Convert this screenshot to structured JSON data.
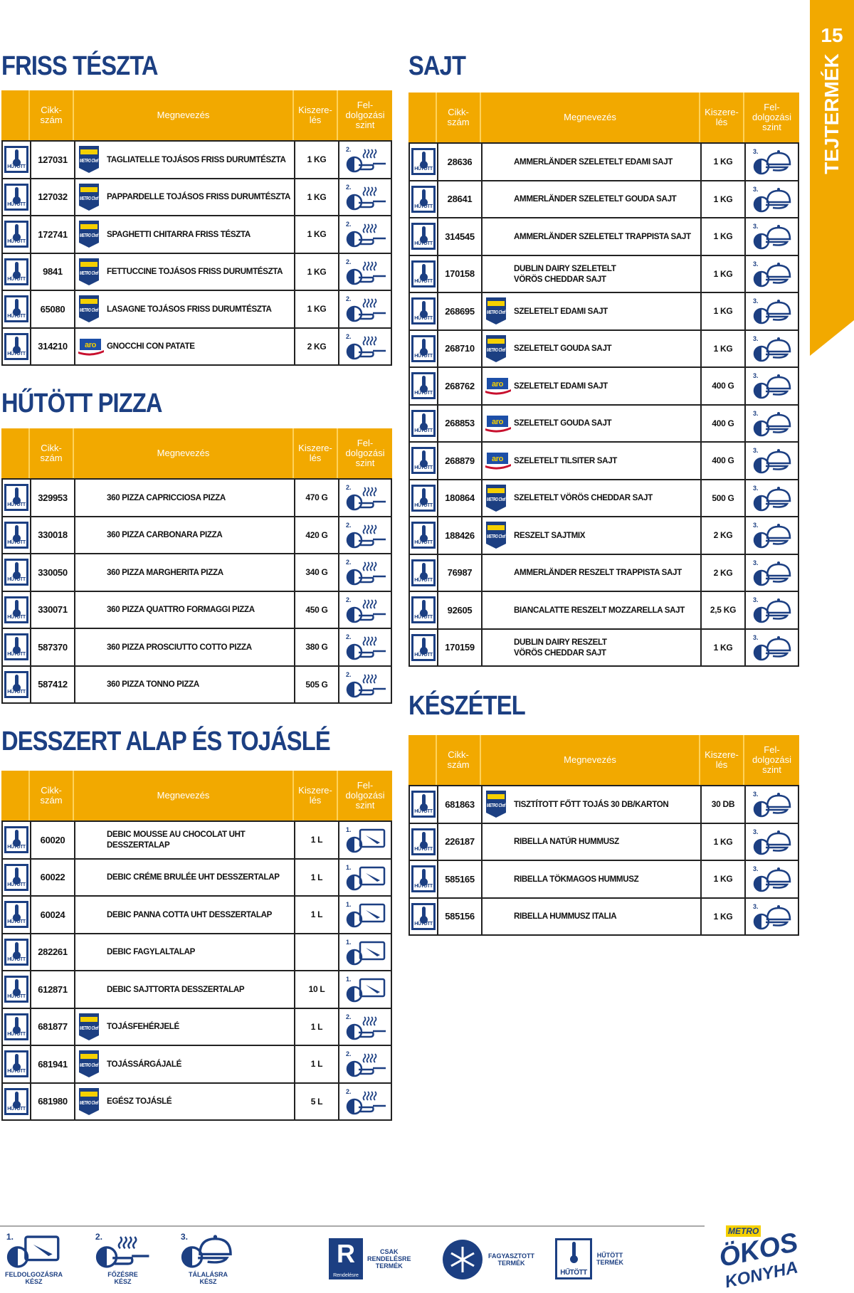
{
  "page_number": "15",
  "side_tab": "TEJTERMÉK",
  "headers": {
    "code": "Cikk-\nszám",
    "name": "Megnevezés",
    "size": "Kiszere-\nlés",
    "level": "Fel-\ndolgozási\nszint"
  },
  "icons": {
    "chilled_label": "HŰTÖTT",
    "level_1": "1.",
    "level_2": "2.",
    "level_3": "3."
  },
  "brands": {
    "metro_chef": "METRO Chef",
    "aro": "aro"
  },
  "colors": {
    "accent": "#f2a900",
    "brand_blue": "#1c3f82",
    "aro_red": "#c8102e"
  },
  "sections": [
    {
      "id": "friss",
      "title": "FRISS TÉSZTA",
      "rows": [
        {
          "code": "127031",
          "brand": "metro_chef",
          "name": "TAGLIATELLE TOJÁSOS FRISS DURUMTÉSZTA",
          "size": "1 KG",
          "level": 2
        },
        {
          "code": "127032",
          "brand": "metro_chef",
          "name": "PAPPARDELLE TOJÁSOS FRISS DURUMTÉSZTA",
          "size": "1 KG",
          "level": 2
        },
        {
          "code": "172741",
          "brand": "metro_chef",
          "name": "SPAGHETTI CHITARRA FRISS TÉSZTA",
          "size": "1 KG",
          "level": 2
        },
        {
          "code": "9841",
          "brand": "metro_chef",
          "name": "FETTUCCINE TOJÁSOS FRISS DURUMTÉSZTA",
          "size": "1 KG",
          "level": 2
        },
        {
          "code": "65080",
          "brand": "metro_chef",
          "name": "LASAGNE TOJÁSOS FRISS DURUMTÉSZTA",
          "size": "1 KG",
          "level": 2
        },
        {
          "code": "314210",
          "brand": "aro",
          "name": "GNOCCHI CON PATATE",
          "size": "2 KG",
          "level": 2
        }
      ]
    },
    {
      "id": "pizza",
      "title": "HŰTÖTT PIZZA",
      "rows": [
        {
          "code": "329953",
          "brand": "",
          "name": "360 PIZZA CAPRICCIOSA PIZZA",
          "size": "470 G",
          "level": 2
        },
        {
          "code": "330018",
          "brand": "",
          "name": "360 PIZZA CARBONARA PIZZA",
          "size": "420 G",
          "level": 2
        },
        {
          "code": "330050",
          "brand": "",
          "name": "360 PIZZA MARGHERITA PIZZA",
          "size": "340 G",
          "level": 2
        },
        {
          "code": "330071",
          "brand": "",
          "name": "360 PIZZA QUATTRO FORMAGGI PIZZA",
          "size": "450 G",
          "level": 2
        },
        {
          "code": "587370",
          "brand": "",
          "name": "360 PIZZA PROSCIUTTO COTTO PIZZA",
          "size": "380 G",
          "level": 2
        },
        {
          "code": "587412",
          "brand": "",
          "name": "360 PIZZA TONNO PIZZA",
          "size": "505 G",
          "level": 2
        }
      ]
    },
    {
      "id": "desszert",
      "title": "DESSZERT ALAP ÉS TOJÁSLÉ",
      "rows": [
        {
          "code": "60020",
          "brand": "",
          "name": "DEBIC MOUSSE AU CHOCOLAT UHT\nDESSZERTALAP",
          "size": "1 L",
          "level": 1
        },
        {
          "code": "60022",
          "brand": "",
          "name": "DEBIC CRÉME BRULÉE UHT DESSZERTALAP",
          "size": "1 L",
          "level": 1
        },
        {
          "code": "60024",
          "brand": "",
          "name": "DEBIC PANNA COTTA UHT DESSZERTALAP",
          "size": "1 L",
          "level": 1
        },
        {
          "code": "282261",
          "brand": "",
          "name": "DEBIC FAGYLALTALAP",
          "size": "",
          "level": 1
        },
        {
          "code": "612871",
          "brand": "",
          "name": "DEBIC SAJTTORTA DESSZERTALAP",
          "size": "10 L",
          "level": 1
        },
        {
          "code": "681877",
          "brand": "metro_chef",
          "name": "TOJÁSFEHÉRJELÉ",
          "size": "1 L",
          "level": 2
        },
        {
          "code": "681941",
          "brand": "metro_chef",
          "name": "TOJÁSSÁRGÁJALÉ",
          "size": "1 L",
          "level": 2
        },
        {
          "code": "681980",
          "brand": "metro_chef",
          "name": "EGÉSZ TOJÁSLÉ",
          "size": "5 L",
          "level": 2
        }
      ]
    },
    {
      "id": "sajt",
      "title": "SAJT",
      "rows": [
        {
          "code": "28636",
          "brand": "",
          "name": "AMMERLÄNDER SZELETELT EDAMI SAJT",
          "size": "1 KG",
          "level": 3
        },
        {
          "code": "28641",
          "brand": "",
          "name": "AMMERLÄNDER SZELETELT GOUDA SAJT",
          "size": "1 KG",
          "level": 3
        },
        {
          "code": "314545",
          "brand": "",
          "name": "AMMERLÄNDER SZELETELT TRAPPISTA SAJT",
          "size": "1 KG",
          "level": 3
        },
        {
          "code": "170158",
          "brand": "",
          "name": "DUBLIN DAIRY SZELETELT\nVÖRÖS CHEDDAR SAJT",
          "size": "1 KG",
          "level": 3
        },
        {
          "code": "268695",
          "brand": "metro_chef",
          "name": "SZELETELT EDAMI SAJT",
          "size": "1 KG",
          "level": 3
        },
        {
          "code": "268710",
          "brand": "metro_chef",
          "name": "SZELETELT GOUDA SAJT",
          "size": "1 KG",
          "level": 3
        },
        {
          "code": "268762",
          "brand": "aro",
          "name": "SZELETELT EDAMI SAJT",
          "size": "400 G",
          "level": 3
        },
        {
          "code": "268853",
          "brand": "aro",
          "name": "SZELETELT GOUDA SAJT",
          "size": "400 G",
          "level": 3
        },
        {
          "code": "268879",
          "brand": "aro",
          "name": "SZELETELT TILSITER SAJT",
          "size": "400 G",
          "level": 3
        },
        {
          "code": "180864",
          "brand": "metro_chef",
          "name": "SZELETELT VÖRÖS CHEDDAR SAJT",
          "size": "500 G",
          "level": 3
        },
        {
          "code": "188426",
          "brand": "metro_chef",
          "name": "RESZELT SAJTMIX",
          "size": "2 KG",
          "level": 3
        },
        {
          "code": "76987",
          "brand": "",
          "name": "AMMERLÄNDER RESZELT TRAPPISTA SAJT",
          "size": "2 KG",
          "level": 3
        },
        {
          "code": "92605",
          "brand": "",
          "name": "BIANCALATTE RESZELT MOZZARELLA SAJT",
          "size": "2,5 KG",
          "level": 3
        },
        {
          "code": "170159",
          "brand": "",
          "name": "DUBLIN DAIRY RESZELT\nVÖRÖS CHEDDAR SAJT",
          "size": "1 KG",
          "level": 3
        }
      ]
    },
    {
      "id": "keszetel",
      "title": "KÉSZÉTEL",
      "rows": [
        {
          "code": "681863",
          "brand": "metro_chef",
          "name": "TISZTÍTOTT FŐTT TOJÁS 30 DB/KARTON",
          "size": "30 DB",
          "level": 3
        },
        {
          "code": "226187",
          "brand": "",
          "name": "RIBELLA NATÚR HUMMUSZ",
          "size": "1 KG",
          "level": 3
        },
        {
          "code": "585165",
          "brand": "",
          "name": "RIBELLA TÖKMAGOS HUMMUSZ",
          "size": "1 KG",
          "level": 3
        },
        {
          "code": "585156",
          "brand": "",
          "name": "RIBELLA HUMMUSZ ITALIA",
          "size": "1 KG",
          "level": 3
        }
      ]
    }
  ],
  "legend": {
    "levels": [
      {
        "num": "1.",
        "label": "FELDOLGOZÁSRA\nKÉSZ"
      },
      {
        "num": "2.",
        "label": "FŐZÉSRE\nKÉSZ"
      },
      {
        "num": "3.",
        "label": "TÁLALÁSRA\nKÉSZ"
      }
    ],
    "order_only": "CSAK\nRENDELÉSRE\nTERMÉK",
    "order_logo_text": "Rendelésre",
    "frozen": "FAGYASZTOTT\nTERMÉK",
    "chilled_icon_text": "HŰTÖTT",
    "chilled": "HŰTÖTT\nTERMÉK",
    "logo": {
      "top": "METRO",
      "line1": "ÖKOS",
      "line2": "KONYHA"
    }
  }
}
